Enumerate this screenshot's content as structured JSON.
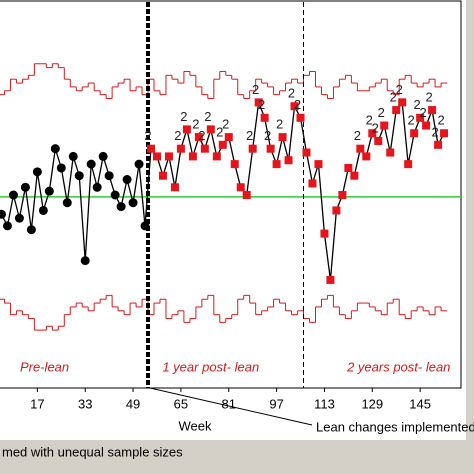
{
  "chart_data": {
    "type": "control",
    "x_label": "Week",
    "annotation": "Lean changes implemented",
    "footer": "med with unequal sample sizes",
    "xlim": [
      4.5,
      159
    ],
    "ylim": [
      0,
      100
    ],
    "xticks": [
      17,
      33,
      49,
      65,
      81,
      97,
      113,
      129,
      145
    ],
    "center": 49.5,
    "center_color": "#33cc33",
    "limit_color": "#d7191c",
    "line_color": "#000000",
    "phase_lines": [
      54,
      106
    ],
    "phases": [
      {
        "label": "Pre-lean",
        "color": "#000000"
      },
      {
        "label": "1 year post- lean",
        "color": "#e8141c"
      },
      {
        "label": "2 years post- lean",
        "color": "#e8141c"
      }
    ],
    "x": [
      5,
      7,
      9,
      11,
      13,
      15,
      17,
      19,
      21,
      23,
      25,
      27,
      29,
      31,
      33,
      35,
      37,
      39,
      41,
      43,
      45,
      47,
      49,
      51,
      53,
      55,
      57,
      59,
      61,
      63,
      65,
      67,
      69,
      71,
      73,
      75,
      77,
      79,
      81,
      83,
      85,
      87,
      89,
      91,
      93,
      95,
      97,
      99,
      101,
      103,
      105,
      107,
      109,
      111,
      113,
      115,
      117,
      119,
      121,
      123,
      125,
      127,
      129,
      131,
      133,
      135,
      137,
      139,
      141,
      143,
      145,
      147,
      149,
      151,
      153
    ],
    "values": [
      45,
      42,
      50,
      44,
      52,
      41,
      56,
      46,
      51,
      62,
      57,
      48,
      60,
      55,
      33,
      58,
      52,
      60,
      55,
      50,
      47,
      54,
      48,
      58,
      42,
      62,
      60,
      55,
      60,
      52,
      62,
      67,
      60,
      65,
      62,
      67,
      60,
      63,
      65,
      58,
      52,
      50,
      62,
      74,
      70,
      62,
      58,
      65,
      59,
      73,
      70,
      61,
      53,
      58,
      40,
      28,
      46,
      50,
      57,
      55,
      62,
      60,
      66,
      64,
      68,
      61,
      72,
      74,
      58,
      66,
      70,
      68,
      72,
      63,
      66
    ],
    "point_labels": [
      null,
      null,
      null,
      null,
      null,
      null,
      null,
      null,
      null,
      null,
      null,
      null,
      null,
      null,
      null,
      null,
      null,
      null,
      null,
      null,
      null,
      null,
      null,
      null,
      null,
      "2",
      null,
      null,
      null,
      null,
      "2",
      "2",
      null,
      "2",
      "2",
      "2",
      null,
      "2",
      "2",
      null,
      null,
      null,
      "2",
      "2",
      "2",
      "2",
      null,
      "2",
      null,
      "2",
      "2",
      null,
      null,
      null,
      null,
      null,
      null,
      null,
      null,
      null,
      "2",
      null,
      "2",
      "2",
      "2",
      null,
      "2",
      "2",
      null,
      "2",
      "2",
      "2",
      "2",
      "2",
      "2"
    ],
    "ucl": [
      76,
      77,
      80,
      79,
      80,
      81,
      84,
      84,
      83,
      84,
      83,
      80,
      78,
      77,
      78,
      79,
      77,
      76,
      75,
      78,
      79,
      80,
      77,
      78,
      76,
      80,
      77,
      76,
      81,
      80,
      79,
      82,
      81,
      78,
      76,
      75,
      80,
      82,
      81,
      80,
      76,
      75,
      77,
      80,
      79,
      78,
      76,
      77,
      79,
      80,
      79,
      81,
      82,
      78,
      76,
      75,
      78,
      80,
      81,
      79,
      77,
      77,
      78,
      79,
      80,
      77,
      76,
      80,
      81,
      79,
      78,
      79,
      80,
      78,
      79
    ],
    "lcl": [
      23,
      22,
      19,
      20,
      19,
      18,
      15,
      15,
      16,
      15,
      16,
      19,
      21,
      22,
      21,
      20,
      22,
      23,
      24,
      21,
      20,
      19,
      22,
      21,
      23,
      19,
      22,
      23,
      18,
      19,
      20,
      17,
      18,
      21,
      23,
      24,
      19,
      17,
      18,
      19,
      23,
      24,
      22,
      19,
      20,
      21,
      23,
      22,
      20,
      19,
      20,
      18,
      17,
      21,
      23,
      24,
      21,
      19,
      18,
      20,
      22,
      22,
      21,
      20,
      19,
      22,
      23,
      19,
      18,
      20,
      21,
      20,
      19,
      21,
      20
    ]
  }
}
